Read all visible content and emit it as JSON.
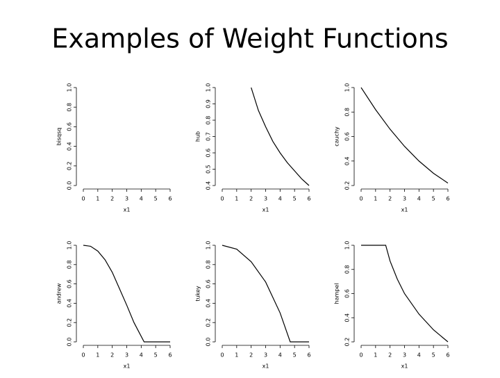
{
  "title": "Examples of Weight Functions",
  "chart_data": [
    {
      "type": "line",
      "ylabel": "bisqsq",
      "xlabel": "x1",
      "xlim": [
        0,
        6
      ],
      "xticks": [
        0,
        1,
        2,
        3,
        4,
        5,
        6
      ],
      "ylim": [
        0,
        1
      ],
      "yticks": [
        {
          "value": 0,
          "label": "0.0"
        },
        0.2,
        0.4,
        0.6,
        0.8,
        {
          "value": 1,
          "label": "1.0"
        }
      ],
      "color": "#000000"
    },
    {
      "type": "line",
      "ylabel": "hub",
      "xlabel": "x1",
      "xlim": [
        0,
        6
      ],
      "xticks": [
        0,
        1,
        2,
        3,
        4,
        5,
        6
      ],
      "ylim": [
        0.4,
        1
      ],
      "yticks": [
        0.4,
        0.5,
        0.6,
        0.7,
        0.8,
        0.9,
        {
          "value": 1,
          "label": "1.0"
        }
      ],
      "color": "#000000",
      "x": [
        2,
        2.5,
        3,
        3.5,
        4,
        4.5,
        5,
        5.5,
        6
      ],
      "values": [
        1,
        0.86,
        0.76,
        0.67,
        0.6,
        0.54,
        0.49,
        0.44,
        0.4
      ]
    },
    {
      "type": "line",
      "ylabel": "cauchy",
      "xlabel": "x1",
      "xlim": [
        0,
        6
      ],
      "xticks": [
        0,
        1,
        2,
        3,
        4,
        5,
        6
      ],
      "ylim": [
        0.2,
        1
      ],
      "yticks": [
        0.2,
        0.4,
        0.6,
        0.8,
        {
          "value": 1,
          "label": "1.0"
        }
      ],
      "color": "#000000",
      "x": [
        0,
        1,
        2,
        3,
        4,
        5,
        6
      ],
      "values": [
        1,
        0.82,
        0.66,
        0.52,
        0.4,
        0.3,
        0.22
      ]
    },
    {
      "type": "line",
      "ylabel": "andrew",
      "xlabel": "x1",
      "xlim": [
        0,
        6
      ],
      "xticks": [
        0,
        1,
        2,
        3,
        4,
        5,
        6
      ],
      "ylim": [
        0,
        1
      ],
      "yticks": [
        {
          "value": 0,
          "label": "0.0"
        },
        0.2,
        0.4,
        0.6,
        0.8,
        {
          "value": 1,
          "label": "1.0"
        }
      ],
      "color": "#000000",
      "x": [
        0,
        0.5,
        1,
        1.5,
        2,
        2.5,
        3,
        3.5,
        4.2,
        6
      ],
      "values": [
        1,
        0.99,
        0.94,
        0.85,
        0.72,
        0.55,
        0.38,
        0.2,
        0,
        0
      ]
    },
    {
      "type": "line",
      "ylabel": "tukey",
      "xlabel": "x1",
      "xlim": [
        0,
        6
      ],
      "xticks": [
        0,
        1,
        2,
        3,
        4,
        5,
        6
      ],
      "ylim": [
        0,
        1
      ],
      "yticks": [
        {
          "value": 0,
          "label": "0.0"
        },
        0.2,
        0.4,
        0.6,
        0.8,
        {
          "value": 1,
          "label": "1.0"
        }
      ],
      "color": "#000000",
      "x": [
        0,
        1,
        2,
        3,
        4,
        4.7,
        6
      ],
      "values": [
        1,
        0.96,
        0.83,
        0.62,
        0.3,
        0,
        0
      ]
    },
    {
      "type": "line",
      "ylabel": "hampel",
      "xlabel": "x1",
      "xlim": [
        0,
        6
      ],
      "xticks": [
        0,
        1,
        2,
        3,
        4,
        5,
        6
      ],
      "ylim": [
        0.2,
        1
      ],
      "yticks": [
        0.2,
        0.4,
        0.6,
        0.8,
        {
          "value": 1,
          "label": "1.0"
        }
      ],
      "color": "#000000",
      "x": [
        0,
        1.7,
        2,
        2.5,
        3,
        4,
        5,
        6
      ],
      "values": [
        1,
        1,
        0.87,
        0.72,
        0.6,
        0.43,
        0.3,
        0.2
      ]
    }
  ]
}
